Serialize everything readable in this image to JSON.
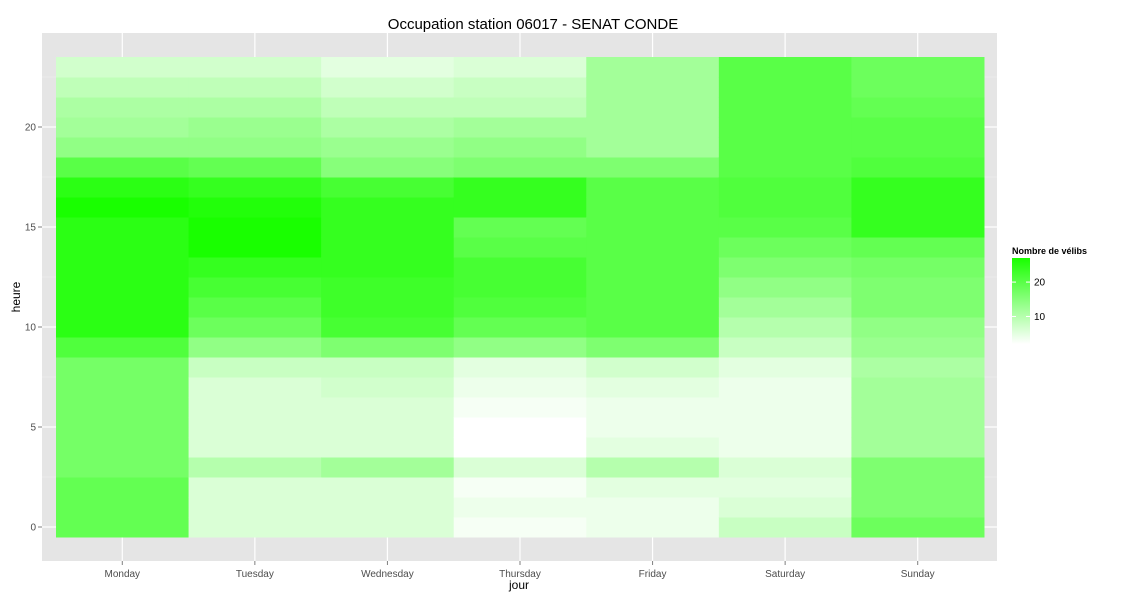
{
  "chart_data": {
    "type": "heatmap",
    "title": "Occupation station 06017 - SENAT CONDE",
    "xlabel": "jour",
    "ylabel": "heure",
    "x_categories": [
      "Monday",
      "Tuesday",
      "Wednesday",
      "Thursday",
      "Friday",
      "Saturday",
      "Sunday"
    ],
    "y_hours": [
      0,
      1,
      2,
      3,
      4,
      5,
      6,
      7,
      8,
      9,
      10,
      11,
      12,
      13,
      14,
      15,
      16,
      17,
      18,
      19,
      20,
      21,
      22,
      23
    ],
    "y_ticks": [
      0,
      5,
      10,
      15,
      20
    ],
    "ylim": [
      -0.5,
      23.5
    ],
    "value_range": [
      2,
      27
    ],
    "color_low": "#ffffff",
    "color_high": "#19ff00",
    "panel_background": "#e5e5e5",
    "grid": true,
    "legend": {
      "title": "Nombre de vélibs",
      "ticks": [
        10,
        20
      ],
      "position": "right"
    },
    "columns": [
      {
        "day": "Monday",
        "values": [
          19,
          19,
          19,
          17,
          17,
          17,
          17,
          17,
          17,
          21,
          25,
          25,
          25,
          25,
          25,
          25,
          27,
          25,
          20,
          14,
          12,
          11,
          9,
          7
        ]
      },
      {
        "day": "Tuesday",
        "values": [
          6,
          6,
          6,
          10,
          6,
          6,
          6,
          6,
          8,
          14,
          18,
          20,
          22,
          24,
          27,
          27,
          26,
          24,
          19,
          14,
          13,
          11,
          9,
          7
        ]
      },
      {
        "day": "Wednesday",
        "values": [
          6,
          6,
          6,
          12,
          6,
          6,
          6,
          7,
          8,
          16,
          22,
          23,
          23,
          24,
          24,
          24,
          24,
          22,
          15,
          13,
          11,
          9,
          7,
          5
        ]
      },
      {
        "day": "Thursday",
        "values": [
          3,
          4,
          3,
          6,
          2,
          2,
          3,
          4,
          5,
          14,
          19,
          21,
          22,
          22,
          20,
          19,
          24,
          24,
          16,
          14,
          12,
          9,
          8,
          6
        ]
      },
      {
        "day": "Friday",
        "values": [
          4,
          4,
          5,
          10,
          5,
          4,
          4,
          5,
          7,
          16,
          20,
          20,
          20,
          20,
          20,
          20,
          20,
          20,
          16,
          12,
          12,
          12,
          12,
          12
        ]
      },
      {
        "day": "Saturday",
        "values": [
          8,
          6,
          5,
          6,
          4,
          4,
          4,
          4,
          5,
          8,
          10,
          12,
          14,
          16,
          18,
          20,
          21,
          21,
          20,
          20,
          20,
          20,
          20,
          20
        ]
      },
      {
        "day": "Sunday",
        "values": [
          18,
          16,
          16,
          16,
          12,
          12,
          12,
          12,
          11,
          13,
          14,
          16,
          16,
          17,
          19,
          24,
          24,
          24,
          21,
          20,
          20,
          19,
          18,
          18
        ]
      }
    ]
  }
}
